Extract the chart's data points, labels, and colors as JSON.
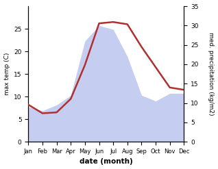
{
  "months": [
    "Jan",
    "Feb",
    "Mar",
    "Apr",
    "May",
    "Jun",
    "Jul",
    "Aug",
    "Sep",
    "Oct",
    "Nov",
    "Dec"
  ],
  "month_indices": [
    1,
    2,
    3,
    4,
    5,
    6,
    7,
    8,
    9,
    10,
    11,
    12
  ],
  "temperature": [
    8.2,
    6.3,
    6.5,
    9.5,
    17.0,
    26.2,
    26.5,
    26.0,
    21.0,
    16.5,
    12.0,
    11.5
  ],
  "precipitation": [
    9.0,
    8.0,
    9.5,
    12.0,
    26.0,
    30.0,
    29.0,
    22.0,
    12.0,
    10.5,
    12.5,
    12.5
  ],
  "temp_color": "#b03030",
  "precip_fill_color": "#c5cdf0",
  "left_ylabel": "max temp (C)",
  "right_ylabel": "med. precipitation (kg/m2)",
  "xlabel": "date (month)",
  "left_ylim": [
    0,
    30
  ],
  "right_ylim": [
    0,
    35
  ],
  "left_yticks": [
    0,
    5,
    10,
    15,
    20,
    25
  ],
  "right_yticks": [
    0,
    5,
    10,
    15,
    20,
    25,
    30,
    35
  ],
  "background_color": "#ffffff",
  "fig_width": 3.18,
  "fig_height": 2.47,
  "dpi": 100
}
